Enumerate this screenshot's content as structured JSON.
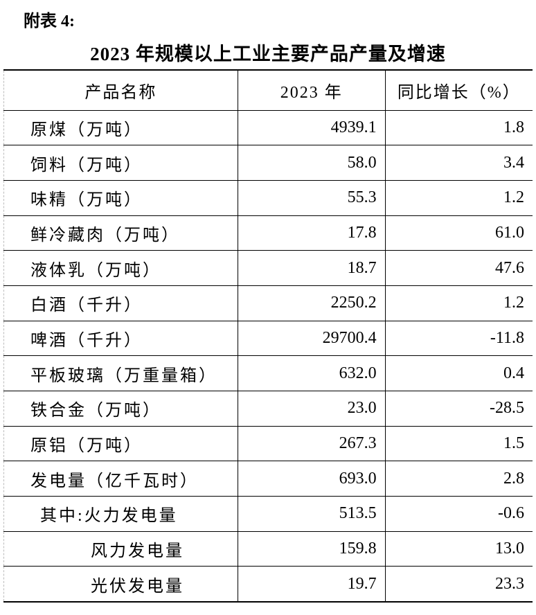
{
  "header": {
    "label": "附表 4:",
    "title": "2023 年规模以上工业主要产品产量及增速"
  },
  "table": {
    "columns": [
      "产品名称",
      "2023 年",
      "同比增长（%）"
    ],
    "rows": [
      [
        "原煤（万吨）",
        "4939.1",
        "1.8"
      ],
      [
        "饲料（万吨）",
        "58.0",
        "3.4"
      ],
      [
        "味精（万吨）",
        "55.3",
        "1.2"
      ],
      [
        "鲜冷藏肉（万吨）",
        "17.8",
        "61.0"
      ],
      [
        "液体乳（万吨）",
        "18.7",
        "47.6"
      ],
      [
        "白酒（千升）",
        "2250.2",
        "1.2"
      ],
      [
        "啤酒（千升）",
        "29700.4",
        "-11.8"
      ],
      [
        "平板玻璃（万重量箱）",
        "632.0",
        "0.4"
      ],
      [
        "铁合金（万吨）",
        "23.0",
        "-28.5"
      ],
      [
        "原铝（万吨）",
        "267.3",
        "1.5"
      ],
      [
        "发电量（亿千瓦时）",
        "693.0",
        "2.8"
      ],
      [
        "其中:火力发电量",
        "513.5",
        "-0.6"
      ],
      [
        "风力发电量",
        "159.8",
        "13.0"
      ],
      [
        "光伏发电量",
        "19.7",
        "23.3"
      ]
    ]
  }
}
